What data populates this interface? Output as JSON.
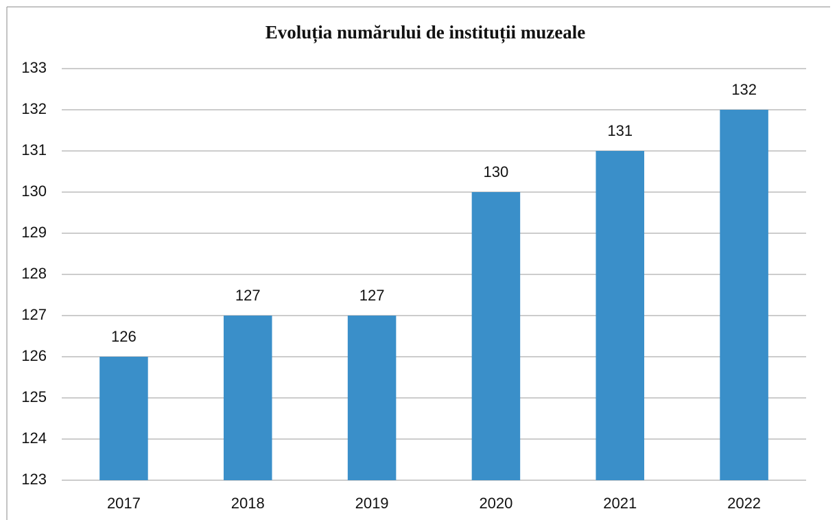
{
  "chart_data": {
    "type": "bar",
    "title": "Evoluția numărului  de instituții muzeale",
    "categories": [
      "2017",
      "2018",
      "2019",
      "2020",
      "2021",
      "2022"
    ],
    "values": [
      126,
      127,
      127,
      130,
      131,
      132
    ],
    "color": "#3a8fc9",
    "ylim": [
      123,
      133
    ],
    "yticks": [
      123,
      124,
      125,
      126,
      127,
      128,
      129,
      130,
      131,
      132,
      133
    ],
    "grid": true
  }
}
